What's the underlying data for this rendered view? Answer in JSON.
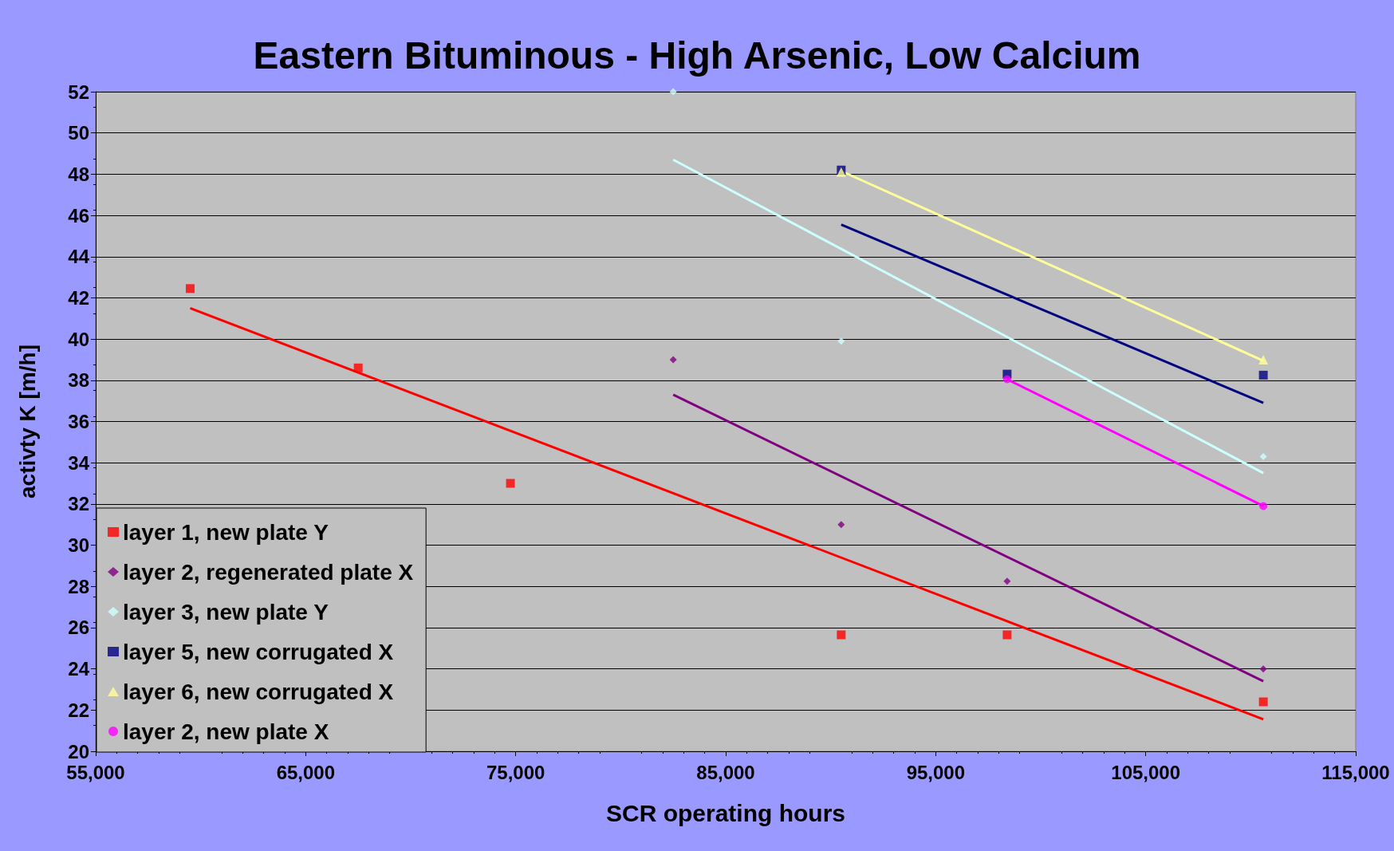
{
  "chart_data": {
    "type": "scatter",
    "title": "Eastern Bituminous - High Arsenic, Low Calcium",
    "xlabel": "SCR operating hours",
    "ylabel": "activty K [m/h]",
    "xlim": [
      55000,
      115000
    ],
    "xticks": [
      {
        "value": 55000,
        "label": "55,000"
      },
      {
        "value": 65000,
        "label": "65,000"
      },
      {
        "value": 75000,
        "label": "75,000"
      },
      {
        "value": 85000,
        "label": "85,000"
      },
      {
        "value": 95000,
        "label": "95,000"
      },
      {
        "value": 105000,
        "label": "105,000"
      },
      {
        "value": 115000,
        "label": "115,000"
      }
    ],
    "ylim": [
      20,
      52
    ],
    "yticks": [
      20,
      22,
      24,
      26,
      28,
      30,
      32,
      34,
      36,
      38,
      40,
      42,
      44,
      46,
      48,
      50,
      52
    ],
    "grid": "y",
    "legend": "bottom left",
    "series": [
      {
        "name": "layer 1, new plate Y",
        "color": "#ff0000",
        "marker": "square",
        "x": [
          59500,
          67500,
          74750,
          90500,
          98400,
          110600
        ],
        "values": [
          42.45,
          38.6,
          33.0,
          25.65,
          25.65,
          22.4
        ]
      },
      {
        "name": "layer 2, regenerated plate X",
        "color": "#800080",
        "marker": "diamond",
        "x": [
          82500,
          90500,
          98400,
          110600
        ],
        "values": [
          39.0,
          31.0,
          28.25,
          24.0
        ]
      },
      {
        "name": "layer 3, new plate Y",
        "color": "#ccffff",
        "marker": "diamond",
        "x": [
          82500,
          90500,
          110600
        ],
        "values": [
          52.0,
          39.9,
          34.3
        ]
      },
      {
        "name": "layer 5, new corrugated X",
        "color": "#000080",
        "marker": "square",
        "x": [
          90500,
          98400,
          110600
        ],
        "values": [
          48.2,
          38.3,
          38.25
        ]
      },
      {
        "name": "layer 6, new corrugated X",
        "color": "#ffff99",
        "marker": "triangle",
        "x": [
          90500,
          110600
        ],
        "values": [
          48.1,
          39.0
        ]
      },
      {
        "name": "layer 2, new plate X",
        "color": "#ff00ff",
        "marker": "circle",
        "x": [
          98400,
          110600
        ],
        "values": [
          38.05,
          31.9
        ]
      },
      {
        "type": "line",
        "color": "#ff0000",
        "marker": "none",
        "x": [
          59500,
          110600
        ],
        "values": [
          41.5,
          21.55
        ]
      },
      {
        "type": "line",
        "color": "#800080",
        "marker": "none",
        "x": [
          82500,
          110600
        ],
        "values": [
          37.3,
          23.4
        ]
      },
      {
        "type": "line",
        "color": "#ccffff",
        "marker": "none",
        "x": [
          82500,
          110600
        ],
        "values": [
          48.7,
          33.5
        ]
      },
      {
        "type": "line",
        "color": "#000080",
        "marker": "none",
        "x": [
          90500,
          110600
        ],
        "values": [
          45.55,
          36.9
        ]
      },
      {
        "type": "line",
        "color": "#ffff99",
        "marker": "none",
        "x": [
          90500,
          110600
        ],
        "values": [
          48.15,
          38.95
        ]
      },
      {
        "type": "line",
        "color": "#ff00ff",
        "marker": "none",
        "x": [
          98400,
          110600
        ],
        "values": [
          38.05,
          31.9
        ]
      }
    ]
  }
}
